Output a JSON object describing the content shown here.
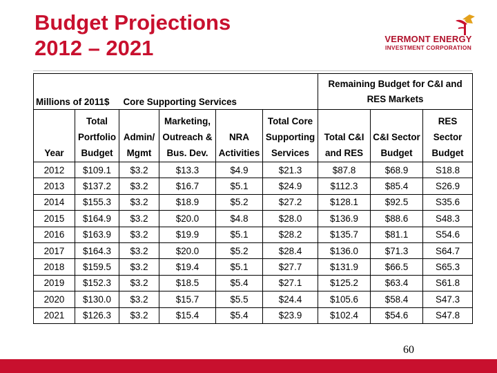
{
  "slide": {
    "title_line1": "Budget Projections",
    "title_line2": "2012 – 2021",
    "page_number": "60",
    "colors": {
      "title": "#c8102e",
      "bar": "#c8102e",
      "logo": "#b0122b"
    }
  },
  "logo": {
    "line1": "VERMONT ENERGY",
    "line2": "INVESTMENT CORPORATION",
    "icon": "flag-logo-icon"
  },
  "table": {
    "group_headers": {
      "units": "Millions of 2011$",
      "core": "Core Supporting Services",
      "remaining_line1": "Remaining Budget for C&I and",
      "remaining_line2": "RES Markets"
    },
    "columns": [
      {
        "line1": "",
        "line2": "",
        "line3": "Year"
      },
      {
        "line1": "Total",
        "line2": "Portfolio",
        "line3": "Budget"
      },
      {
        "line1": "",
        "line2": "Admin/",
        "line3": "Mgmt"
      },
      {
        "line1": "Marketing,",
        "line2": "Outreach &",
        "line3": "Bus. Dev."
      },
      {
        "line1": "",
        "line2": "NRA",
        "line3": "Activities"
      },
      {
        "line1": "Total Core",
        "line2": "Supporting",
        "line3": "Services"
      },
      {
        "line1": "",
        "line2": "Total C&I",
        "line3": "and RES"
      },
      {
        "line1": "",
        "line2": "C&I Sector",
        "line3": "Budget"
      },
      {
        "line1": "RES",
        "line2": "Sector",
        "line3": "Budget"
      }
    ],
    "rows": [
      [
        "2012",
        "$109.1",
        "$3.2",
        "$13.3",
        "$4.9",
        "$21.3",
        "$87.8",
        "$68.9",
        "S18.8"
      ],
      [
        "2013",
        "$137.2",
        "$3.2",
        "$16.7",
        "$5.1",
        "$24.9",
        "$112.3",
        "$85.4",
        "S26.9"
      ],
      [
        "2014",
        "$155.3",
        "$3.2",
        "$18.9",
        "$5.2",
        "$27.2",
        "$128.1",
        "$92.5",
        "S35.6"
      ],
      [
        "2015",
        "$164.9",
        "$3.2",
        "$20.0",
        "$4.8",
        "$28.0",
        "$136.9",
        "$88.6",
        "S48.3"
      ],
      [
        "2016",
        "$163.9",
        "$3.2",
        "$19.9",
        "$5.1",
        "$28.2",
        "$135.7",
        "$81.1",
        "S54.6"
      ],
      [
        "2017",
        "$164.3",
        "$3.2",
        "$20.0",
        "$5.2",
        "$28.4",
        "$136.0",
        "$71.3",
        "S64.7"
      ],
      [
        "2018",
        "$159.5",
        "$3.2",
        "$19.4",
        "$5.1",
        "$27.7",
        "$131.9",
        "$66.5",
        "S65.3"
      ],
      [
        "2019",
        "$152.3",
        "$3.2",
        "$18.5",
        "$5.4",
        "$27.1",
        "$125.2",
        "$63.4",
        "S61.8"
      ],
      [
        "2020",
        "$130.0",
        "$3.2",
        "$15.7",
        "$5.5",
        "$24.4",
        "$105.6",
        "$58.4",
        "S47.3"
      ],
      [
        "2021",
        "$126.3",
        "$3.2",
        "$15.4",
        "$5.4",
        "$23.9",
        "$102.4",
        "$54.6",
        "S47.8"
      ]
    ]
  }
}
